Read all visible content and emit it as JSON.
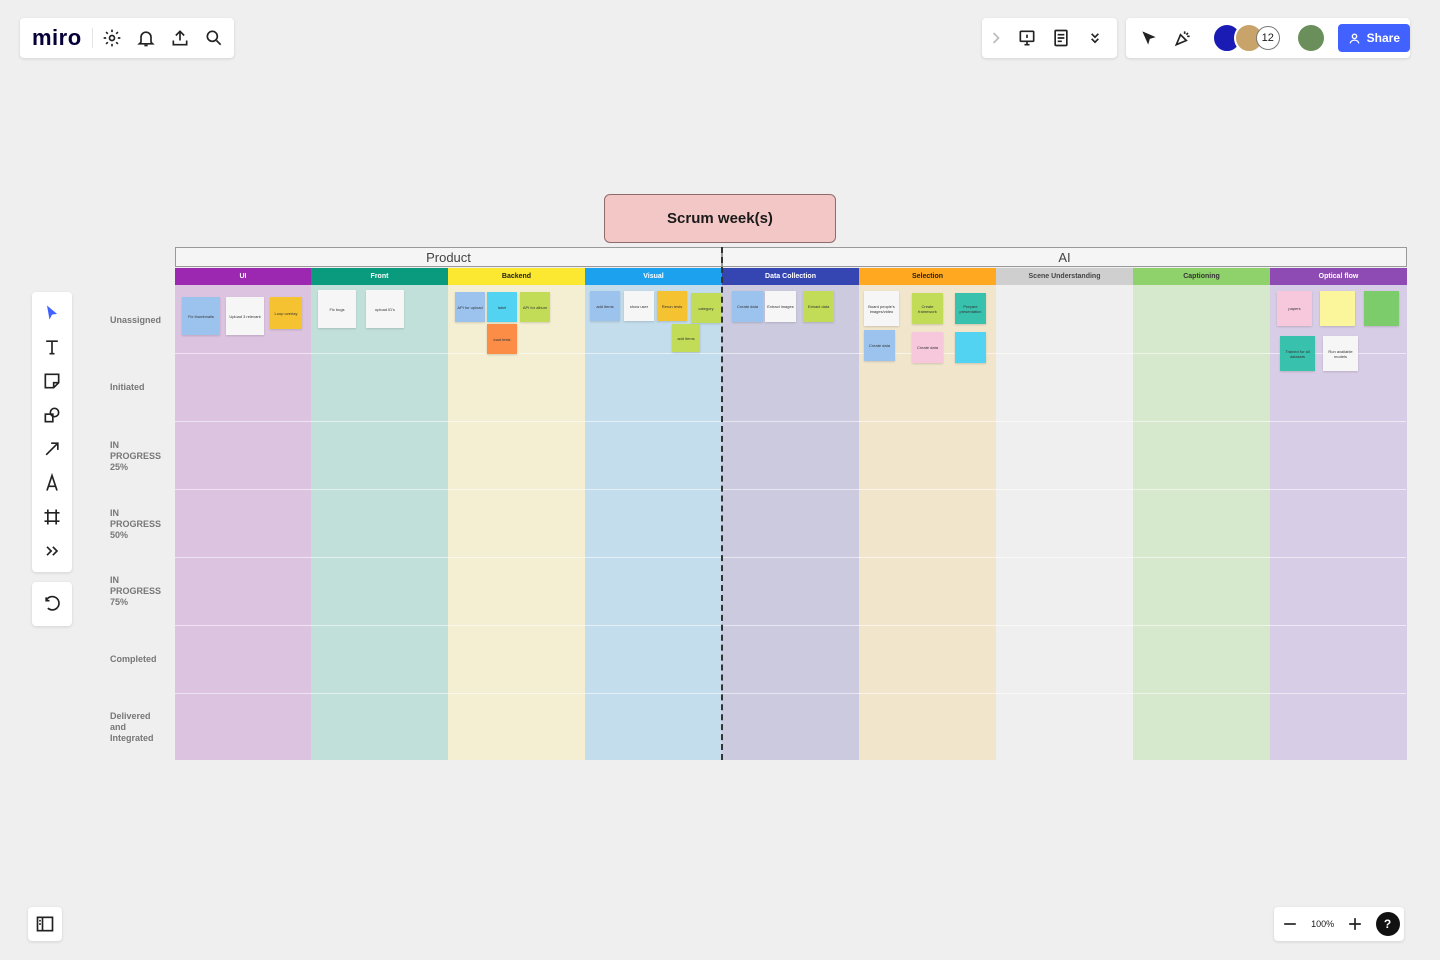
{
  "app": {
    "logo": "miro"
  },
  "topbar_right": {
    "avatar_count": "12",
    "share_label": "Share"
  },
  "board": {
    "title": "Scrum week(s)",
    "groups": [
      {
        "label": "Product"
      },
      {
        "label": "AI"
      }
    ],
    "columns": [
      {
        "label": "UI",
        "header_color": "#9c27b0",
        "body_color": "#dcc4e0"
      },
      {
        "label": "Front",
        "header_color": "#0a9a7e",
        "body_color": "#c2e0da"
      },
      {
        "label": "Backend",
        "header_color": "#fce830",
        "body_color": "#f4eed2",
        "text_color": "#222"
      },
      {
        "label": "Visual",
        "header_color": "#1ba1ee",
        "body_color": "#c3ddec"
      },
      {
        "label": "Data Collection",
        "header_color": "#3546b3",
        "body_color": "#cccadf"
      },
      {
        "label": "Selection",
        "header_color": "#ffa820",
        "body_color": "#f1e6cc",
        "text_color": "#222"
      },
      {
        "label": "Scene Understanding",
        "header_color": "#cfcfcf",
        "body_color": "#efefef",
        "text_color": "#444"
      },
      {
        "label": "Captioning",
        "header_color": "#8fd16a",
        "body_color": "#d7e9cd",
        "text_color": "#333"
      },
      {
        "label": "Optical flow",
        "header_color": "#8e4bb3",
        "body_color": "#d8cde6"
      }
    ],
    "rows": [
      {
        "label": "Unassigned"
      },
      {
        "label": "Initiated"
      },
      {
        "label": "IN PROGRESS 25%"
      },
      {
        "label": "IN PROGRESS 50%"
      },
      {
        "label": "IN PROGRESS 75%"
      },
      {
        "label": "Completed"
      },
      {
        "label": "Delivered and Integrated"
      }
    ],
    "stickies": [
      {
        "text": "Fix thumbnails",
        "color": "#9cc3ee"
      },
      {
        "text": "Upload 3 relevant",
        "color": "#f6f6f6"
      },
      {
        "text": "Loop overlay",
        "color": "#f5c232"
      },
      {
        "text": "Fix bugs",
        "color": "#f6f6f6"
      },
      {
        "text": "upload ID's",
        "color": "#f6f6f6"
      },
      {
        "text": "API for upload",
        "color": "#9cc3ee"
      },
      {
        "text": "label",
        "color": "#52d3f2"
      },
      {
        "text": "API for album",
        "color": "#c3dc57"
      },
      {
        "text": "load tests",
        "color": "#fb8d47"
      },
      {
        "text": "add items",
        "color": "#9cc3ee"
      },
      {
        "text": "show user",
        "color": "#f6f6f6"
      },
      {
        "text": "Rerun tests",
        "color": "#f5c232"
      },
      {
        "text": "category",
        "color": "#c3dc57"
      },
      {
        "text": "add items",
        "color": "#c3dc57"
      },
      {
        "text": "Create data",
        "color": "#9cc3ee"
      },
      {
        "text": "Extract images",
        "color": "#f6f6f6"
      },
      {
        "text": "Extract data",
        "color": "#c3dc57"
      },
      {
        "text": "Board people's images/video",
        "color": "#f6f6f6"
      },
      {
        "text": "Create framework",
        "color": "#c3dc57"
      },
      {
        "text": "Prepare presentation",
        "color": "#38c1ad"
      },
      {
        "text": "Create data",
        "color": "#9cc3ee"
      },
      {
        "text": "Create data",
        "color": "#f7c8dc"
      },
      {
        "text": "",
        "color": "#52d3f2"
      },
      {
        "text": "papers",
        "color": "#f7c8dc"
      },
      {
        "text": "",
        "color": "#fbf59b"
      },
      {
        "text": "",
        "color": "#7ccc6b"
      },
      {
        "text": "Trained for all datasets",
        "color": "#38c1ad"
      },
      {
        "text": "Run available models",
        "color": "#f6f6f6"
      }
    ]
  },
  "zoom": {
    "level": "100%",
    "help": "?"
  }
}
